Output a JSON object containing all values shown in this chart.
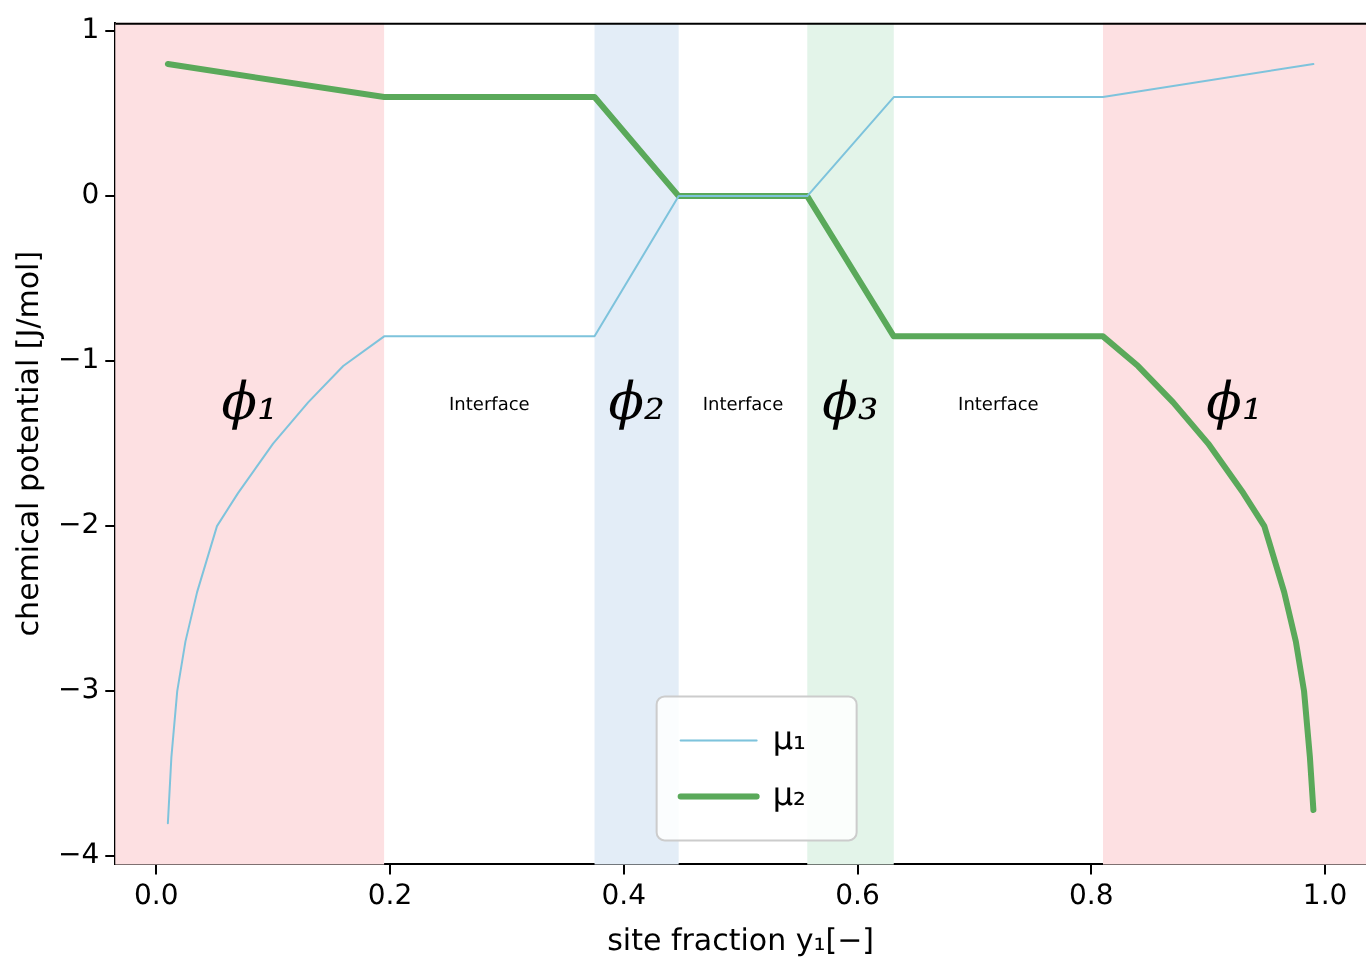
{
  "chart_data": {
    "type": "line",
    "xlabel": "site fraction y₁[−]",
    "ylabel": "chemical potential [J/mol]",
    "xlim": [
      -0.035,
      1.035
    ],
    "ylim": [
      -4.05,
      1.05
    ],
    "xticks": [
      {
        "value": 0,
        "label": "0.0"
      },
      {
        "value": 0.2,
        "label": "0.2"
      },
      {
        "value": 0.4,
        "label": "0.4"
      },
      {
        "value": 0.6,
        "label": "0.6"
      },
      {
        "value": 0.8,
        "label": "0.8"
      },
      {
        "value": 1,
        "label": "1.0"
      }
    ],
    "yticks": [
      -4,
      -3,
      -2,
      -1,
      0,
      1
    ],
    "grid": false,
    "legend": "bottom",
    "line_style": "solid",
    "marker": "none",
    "series": [
      {
        "name": "μ₁",
        "color": "#7ec3dc",
        "x": [
          0.01,
          0.013,
          0.018,
          0.025,
          0.035,
          0.052,
          0.07,
          0.1,
          0.13,
          0.16,
          0.195,
          0.375,
          0.447,
          0.557,
          0.631,
          0.81,
          0.99
        ],
        "values": [
          -3.8,
          -3.4,
          -3.0,
          -2.7,
          -2.4,
          -2.0,
          -1.8,
          -1.5,
          -1.25,
          -1.03,
          -0.85,
          -0.85,
          0,
          0,
          0.6,
          0.6,
          0.8
        ]
      },
      {
        "name": "μ₂",
        "color": "#5aa95a",
        "x": [
          0.01,
          0.195,
          0.375,
          0.447,
          0.557,
          0.631,
          0.81,
          0.84,
          0.87,
          0.9,
          0.93,
          0.948,
          0.965,
          0.975,
          0.982,
          0.987,
          0.99
        ],
        "values": [
          0.8,
          0.6,
          0.6,
          0,
          0,
          -0.85,
          -0.85,
          -1.03,
          -1.25,
          -1.5,
          -1.8,
          -2.0,
          -2.4,
          -2.7,
          -3.0,
          -3.4,
          -3.72
        ]
      }
    ],
    "bands": [
      {
        "axis": "x",
        "from": -0.035,
        "to": 0.195,
        "color": "#fde0e2",
        "label": "ϕ₁"
      },
      {
        "axis": "x",
        "from": 0.375,
        "to": 0.447,
        "color": "#e3edf7",
        "label": "ϕ₂"
      },
      {
        "axis": "x",
        "from": 0.557,
        "to": 0.631,
        "color": "#e3f4e9",
        "label": "ϕ₃"
      },
      {
        "axis": "x",
        "from": 0.81,
        "to": 1.035,
        "color": "#fde0e2",
        "label": "ϕ₁"
      }
    ],
    "annotations": [
      "Interface",
      "Interface",
      "Interface"
    ]
  }
}
